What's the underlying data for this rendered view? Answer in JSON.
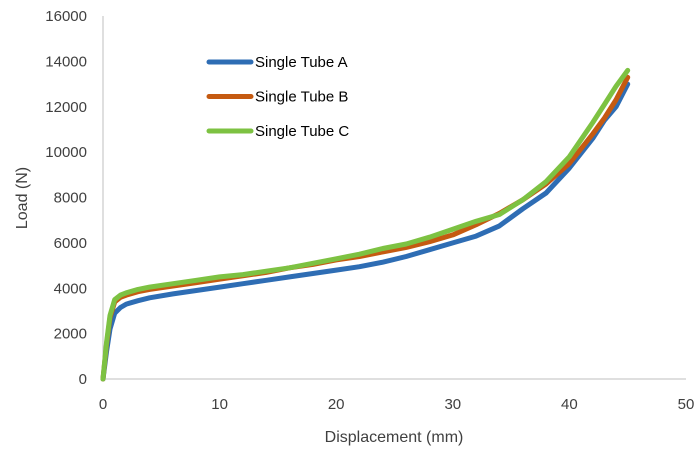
{
  "chart_data": {
    "type": "line",
    "title": "",
    "xlabel": "Displacement (mm)",
    "ylabel": "Load (N)",
    "xlim": [
      0,
      50
    ],
    "ylim": [
      0,
      16000
    ],
    "xticks": [
      0,
      10,
      20,
      30,
      40,
      50
    ],
    "yticks": [
      0,
      2000,
      4000,
      6000,
      8000,
      10000,
      12000,
      14000,
      16000
    ],
    "grid": false,
    "legend_position": "upper-left inside plot",
    "series": [
      {
        "name": "Single Tube A",
        "color": "#2e6db4",
        "x": [
          0,
          0.3,
          0.6,
          1.0,
          1.5,
          2,
          3,
          4,
          6,
          8,
          10,
          12,
          14,
          16,
          18,
          20,
          22,
          24,
          26,
          28,
          30,
          32,
          34,
          36,
          38,
          40,
          42,
          43,
          44,
          45
        ],
        "y": [
          0,
          1200,
          2200,
          2900,
          3150,
          3300,
          3450,
          3580,
          3750,
          3900,
          4050,
          4200,
          4350,
          4500,
          4650,
          4800,
          4950,
          5150,
          5400,
          5700,
          6000,
          6300,
          6750,
          7500,
          8200,
          9300,
          10600,
          11400,
          12000,
          13000
        ]
      },
      {
        "name": "Single Tube B",
        "color": "#c55a11",
        "x": [
          0,
          0.3,
          0.6,
          1.0,
          1.5,
          2,
          3,
          4,
          6,
          8,
          10,
          12,
          14,
          16,
          18,
          20,
          22,
          24,
          26,
          28,
          30,
          32,
          34,
          36,
          38,
          40,
          42,
          43,
          44,
          45
        ],
        "y": [
          0,
          1500,
          2700,
          3400,
          3600,
          3700,
          3850,
          3950,
          4100,
          4250,
          4400,
          4550,
          4700,
          4900,
          5050,
          5250,
          5400,
          5600,
          5800,
          6050,
          6350,
          6800,
          7300,
          7900,
          8600,
          9500,
          10800,
          11500,
          12300,
          13300
        ]
      },
      {
        "name": "Single Tube C",
        "color": "#7dc242",
        "x": [
          0,
          0.3,
          0.6,
          1.0,
          1.5,
          2,
          3,
          4,
          6,
          8,
          10,
          12,
          14,
          16,
          18,
          20,
          22,
          24,
          26,
          28,
          30,
          32,
          34,
          36,
          38,
          40,
          42,
          43,
          44,
          45
        ],
        "y": [
          0,
          1600,
          2800,
          3500,
          3700,
          3800,
          3950,
          4050,
          4200,
          4350,
          4500,
          4600,
          4750,
          4900,
          5100,
          5300,
          5500,
          5750,
          5950,
          6250,
          6600,
          6950,
          7250,
          7900,
          8700,
          9800,
          11300,
          12100,
          12900,
          13600
        ]
      }
    ]
  }
}
